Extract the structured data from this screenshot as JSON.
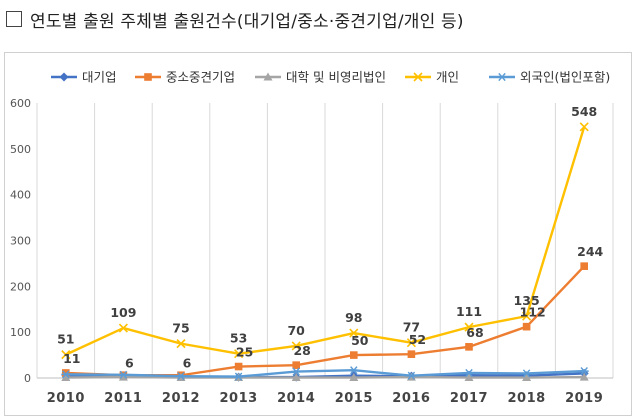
{
  "title": "연도별 출원 주체별 출원건수(대기업/중소·중견기업/개인 등)",
  "chart_data": {
    "type": "line",
    "categories": [
      "2010",
      "2011",
      "2012",
      "2013",
      "2014",
      "2015",
      "2016",
      "2017",
      "2018",
      "2019"
    ],
    "ylim": [
      0,
      600
    ],
    "yticks": [
      "0",
      "100",
      "200",
      "300",
      "400",
      "500",
      "600"
    ],
    "grid": "vertical",
    "legend": "top",
    "series": [
      {
        "name": "대기업",
        "color": "#4472C4",
        "marker": "diamond",
        "values": [
          5,
          5,
          3,
          2,
          2,
          5,
          4,
          6,
          5,
          10
        ]
      },
      {
        "name": "중소중견기업",
        "color": "#ED7D31",
        "marker": "square",
        "values": [
          11,
          6,
          6,
          25,
          28,
          50,
          52,
          68,
          112,
          244
        ],
        "labels": [
          "11",
          "6",
          "6",
          "25",
          "28",
          "50",
          "52",
          "68",
          "112",
          "244"
        ]
      },
      {
        "name": "대학 및 비영리법인",
        "color": "#A5A5A5",
        "marker": "triangle",
        "values": [
          1,
          2,
          1,
          1,
          1,
          1,
          2,
          1,
          1,
          2
        ]
      },
      {
        "name": "개인",
        "color": "#FFC000",
        "marker": "x",
        "values": [
          51,
          109,
          75,
          53,
          70,
          98,
          77,
          111,
          135,
          548
        ],
        "labels": [
          "51",
          "109",
          "75",
          "53",
          "70",
          "98",
          "77",
          "111",
          "135",
          "548"
        ]
      },
      {
        "name": "외국인(법인포함)",
        "color": "#5B9BD5",
        "marker": "star",
        "values": [
          8,
          7,
          4,
          3,
          14,
          17,
          5,
          11,
          10,
          15
        ]
      }
    ]
  }
}
